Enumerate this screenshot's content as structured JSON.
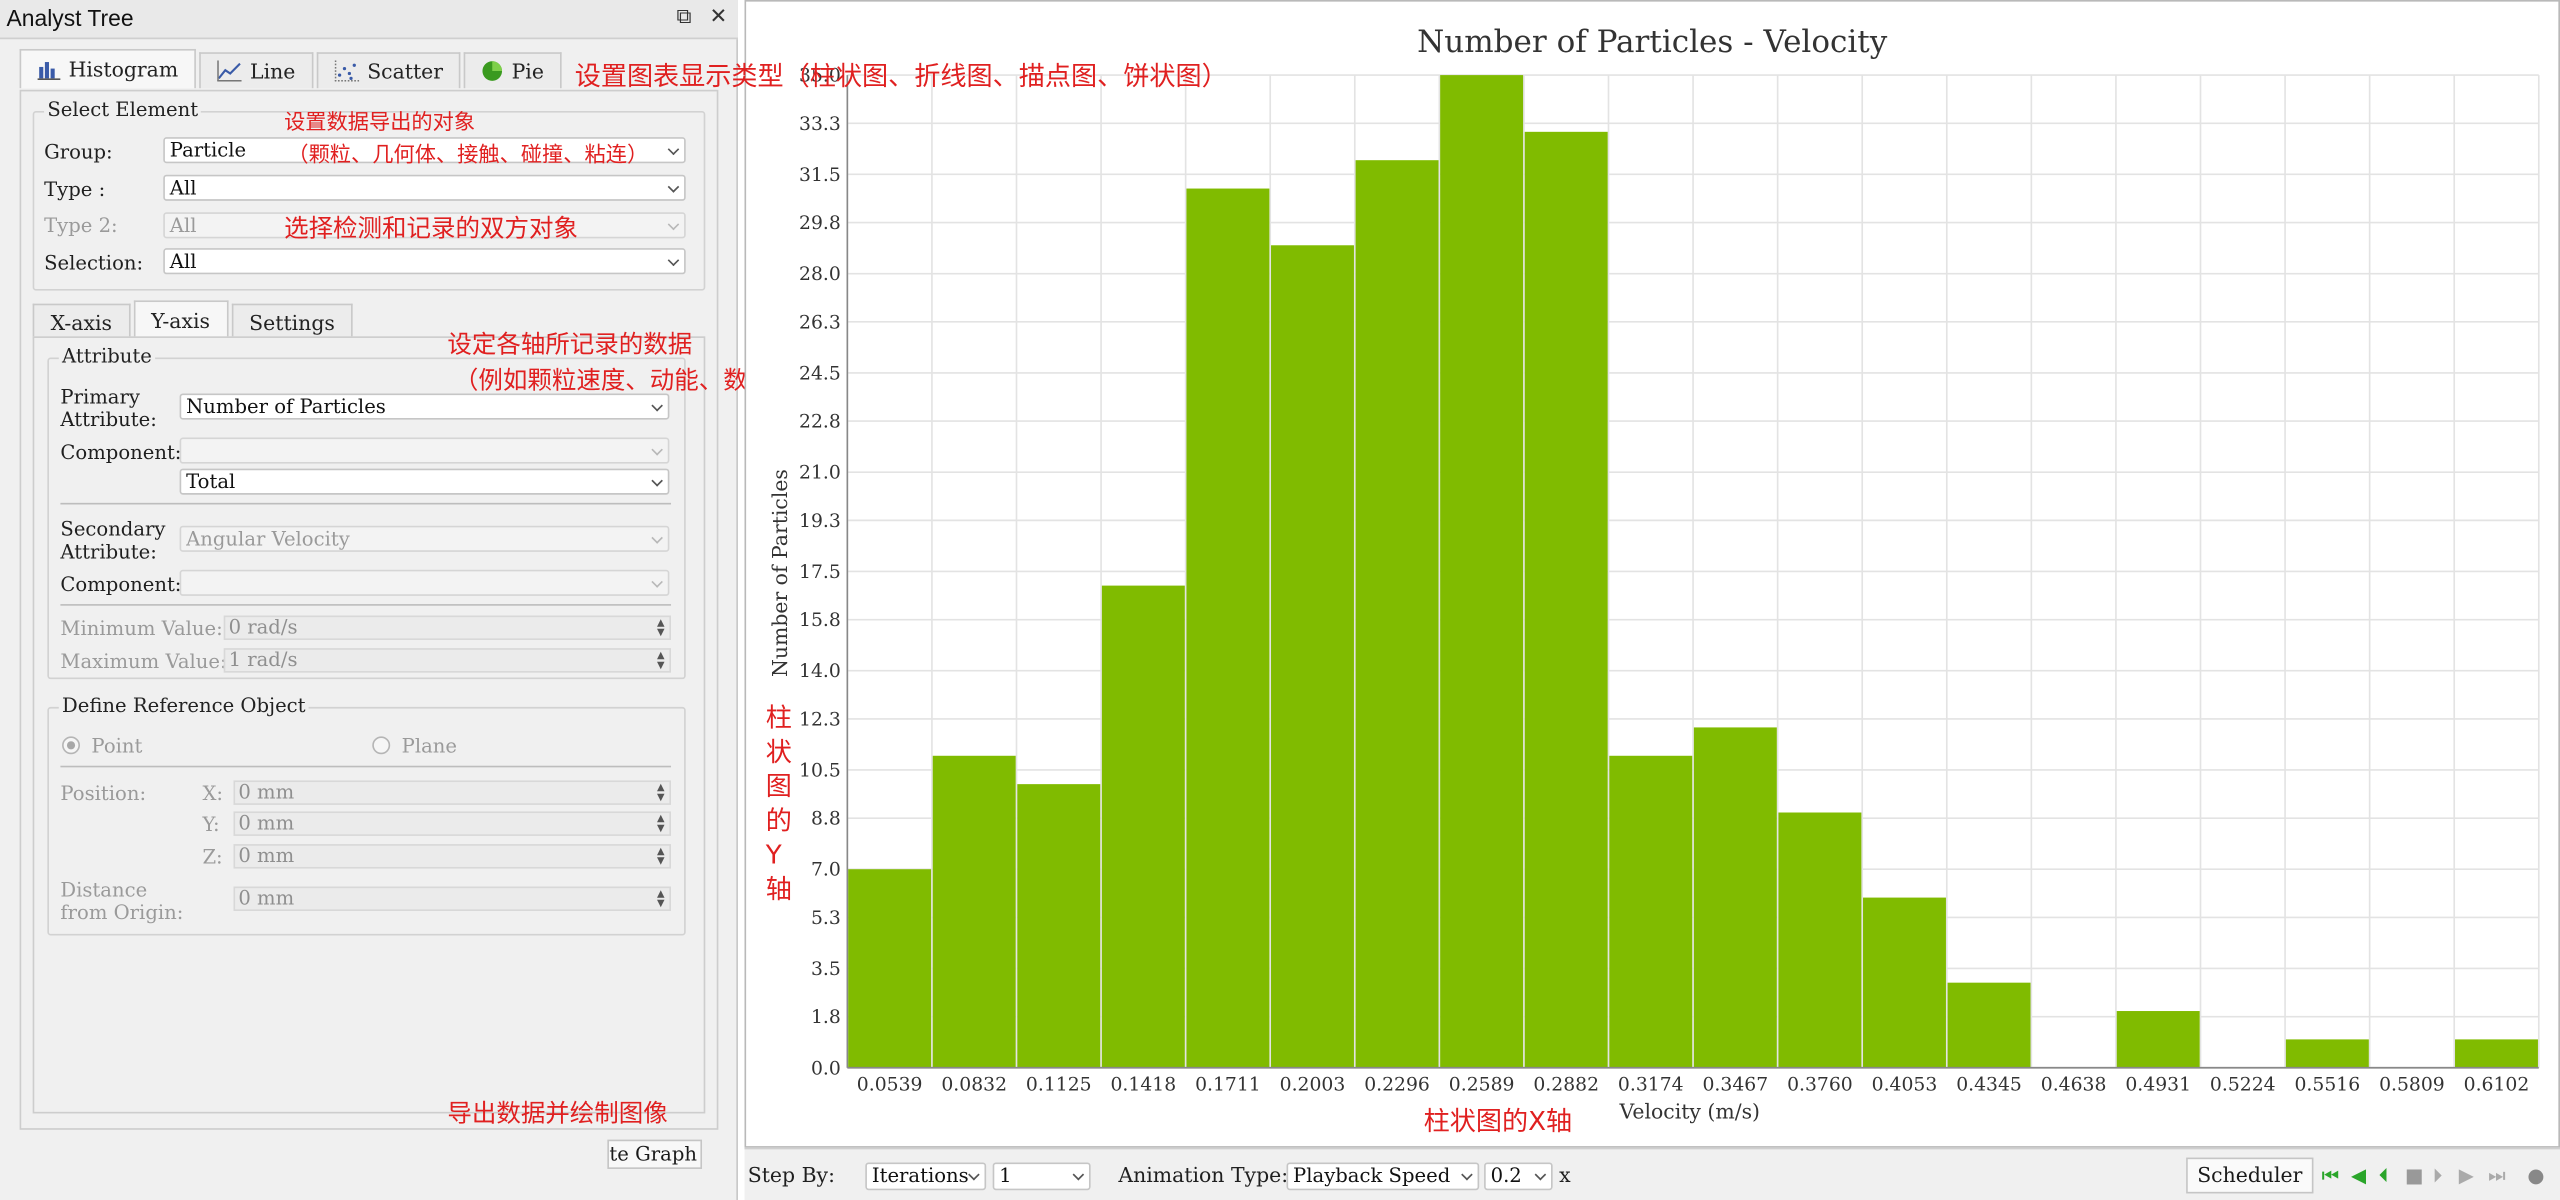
{
  "window": {
    "title": "Analyst Tree",
    "float_icon": "⧉",
    "close_icon": "✕"
  },
  "chart_type_tabs": [
    {
      "label": "Histogram",
      "icon": "histogram-icon",
      "active": true
    },
    {
      "label": "Line",
      "icon": "line-chart-icon",
      "active": false
    },
    {
      "label": "Scatter",
      "icon": "scatter-icon",
      "active": false
    },
    {
      "label": "Pie",
      "icon": "pie-icon",
      "active": false
    }
  ],
  "select_element": {
    "title": "Select Element",
    "group_label": "Group:",
    "group_value": "Particle",
    "type_label": "Type :",
    "type_value": "All",
    "type2_label": "Type 2:",
    "type2_value": "All",
    "selection_label": "Selection:",
    "selection_value": "All"
  },
  "axis_tabs": [
    {
      "label": "X-axis",
      "active": false
    },
    {
      "label": "Y-axis",
      "active": true
    },
    {
      "label": "Settings",
      "active": false
    }
  ],
  "attribute": {
    "title": "Attribute",
    "primary_label_1": "Primary",
    "primary_label_2": "Attribute:",
    "primary_value": "Number of Particles",
    "component_label": "Component:",
    "component_value": "",
    "total_value": "Total",
    "secondary_label_1": "Secondary",
    "secondary_label_2": "Attribute:",
    "secondary_value": "Angular Velocity",
    "component2_label": "Component:",
    "component2_value": "",
    "min_label": "Minimum Value:",
    "min_value": "0 rad/s",
    "max_label": "Maximum Value:",
    "max_value": "1 rad/s"
  },
  "reference": {
    "title": "Define Reference Object",
    "point_label": "Point",
    "plane_label": "Plane",
    "position_label": "Position:",
    "x_label": "X:",
    "x_value": "0 mm",
    "y_label": "Y:",
    "y_value": "0 mm",
    "z_label": "Z:",
    "z_value": "0 mm",
    "distance_label_1": "Distance",
    "distance_label_2": "from Origin:",
    "distance_value": "0 mm"
  },
  "create_button": "Create Graph",
  "annotations": {
    "chart_type": "设置图表显示类型（柱状图、折线图、描点图、饼状图）",
    "export_target_1": "设置数据导出的对象",
    "export_target_2": "（颗粒、几何体、接触、碰撞、粘连）",
    "detect_pair": "选择检测和记录的双方对象",
    "axis_data_1": "设定各轴所记录的数据",
    "axis_data_2": "（例如颗粒速度、动能、数量、受力、位置等）",
    "export_draw": "导出数据并绘制图像",
    "y_axis_note": [
      "柱",
      "状",
      "图",
      "的",
      "Y",
      "轴"
    ],
    "x_axis_note": "柱状图的X轴"
  },
  "toolbar": {
    "step_by_label": "Step By:",
    "step_by_value": "Iterations",
    "step_value": "1",
    "animation_type_label": "Animation Type:",
    "animation_type_value": "Playback Speed",
    "speed_value": "0.2",
    "speed_unit": "x",
    "scheduler_label": "Scheduler",
    "playback_icons": [
      "first-frame-icon",
      "step-back-icon",
      "prev-keyframe-icon",
      "stop-icon",
      "next-keyframe-icon",
      "play-icon",
      "last-frame-icon",
      "record-icon"
    ]
  },
  "colors": {
    "bar": "#80bb00",
    "annotation": "#e02020",
    "grid": "#e3e3e3"
  },
  "chart_data": {
    "type": "bar",
    "title": "Number of Particles - Velocity",
    "xlabel": "Velocity (m/s)",
    "ylabel": "Number of Particles",
    "categories": [
      "0.0539",
      "0.0832",
      "0.1125",
      "0.1418",
      "0.1711",
      "0.2003",
      "0.2296",
      "0.2589",
      "0.2882",
      "0.3174",
      "0.3467",
      "0.3760",
      "0.4053",
      "0.4345",
      "0.4638",
      "0.4931",
      "0.5224",
      "0.5516",
      "0.5809",
      "0.6102"
    ],
    "values": [
      7,
      11,
      10,
      17,
      31,
      29,
      32,
      35,
      33,
      11,
      12,
      9,
      6,
      3,
      0,
      2,
      0,
      1,
      0,
      1
    ],
    "yticks": [
      "0.0",
      "1.8",
      "3.5",
      "5.3",
      "7.0",
      "8.8",
      "10.5",
      "12.3",
      "14.0",
      "15.8",
      "17.5",
      "19.3",
      "21.0",
      "22.8",
      "24.5",
      "26.3",
      "28.0",
      "29.8",
      "31.5",
      "33.3",
      "35.0"
    ],
    "ylim": [
      0,
      35
    ],
    "grid": true
  }
}
